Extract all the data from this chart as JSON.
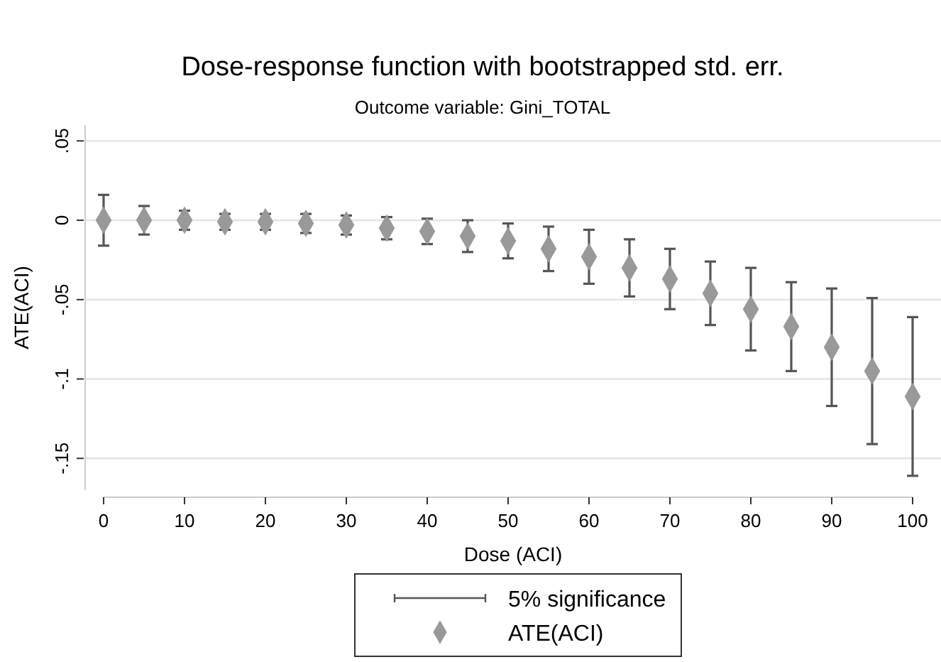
{
  "chart_data": {
    "type": "scatter",
    "title": "Dose-response function with bootstrapped std. err.",
    "subtitle": "Outcome variable: Gini_TOTAL",
    "xlabel": "Dose (ACI)",
    "ylabel": "ATE(ACI)",
    "annotations": [
      "5% significance"
    ],
    "x": [
      0,
      5,
      10,
      15,
      20,
      25,
      30,
      35,
      40,
      45,
      50,
      55,
      60,
      65,
      70,
      75,
      80,
      85,
      90,
      95,
      100
    ],
    "series": [
      {
        "name": "ATE(ACI)",
        "color": "#999999",
        "marker": "diamond",
        "values": [
          0,
          0,
          0,
          -0.001,
          -0.001,
          -0.002,
          -0.003,
          -0.005,
          -0.007,
          -0.01,
          -0.013,
          -0.018,
          -0.023,
          -0.03,
          -0.037,
          -0.046,
          -0.056,
          -0.067,
          -0.08,
          -0.095,
          -0.111
        ],
        "errors": [
          0.016,
          0.009,
          0.006,
          0.005,
          0.005,
          0.006,
          0.006,
          0.007,
          0.008,
          0.01,
          0.011,
          0.014,
          0.017,
          0.018,
          0.019,
          0.02,
          0.026,
          0.028,
          0.037,
          0.046,
          0.05
        ]
      }
    ],
    "xlim": [
      0,
      100
    ],
    "xticks": [
      0,
      10,
      20,
      30,
      40,
      50,
      60,
      70,
      80,
      90,
      100
    ],
    "ylim": [
      -0.17,
      0.06
    ],
    "yticks": [
      {
        "value": 0.05,
        "label": ".05"
      },
      0,
      {
        "value": -0.05,
        "label": "-.05"
      },
      {
        "value": -0.1,
        "label": "-.1"
      },
      {
        "value": -0.15,
        "label": "-.15"
      }
    ],
    "grid": "y",
    "legend": "bottom"
  }
}
